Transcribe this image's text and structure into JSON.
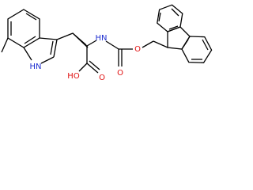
{
  "atoms": [
    {
      "label": "HN"
    },
    {
      "label": "HN"
    },
    {
      "label": "O"
    },
    {
      "label": "O"
    },
    {
      "label": "HO"
    },
    {
      "label": "O"
    }
  ]
}
